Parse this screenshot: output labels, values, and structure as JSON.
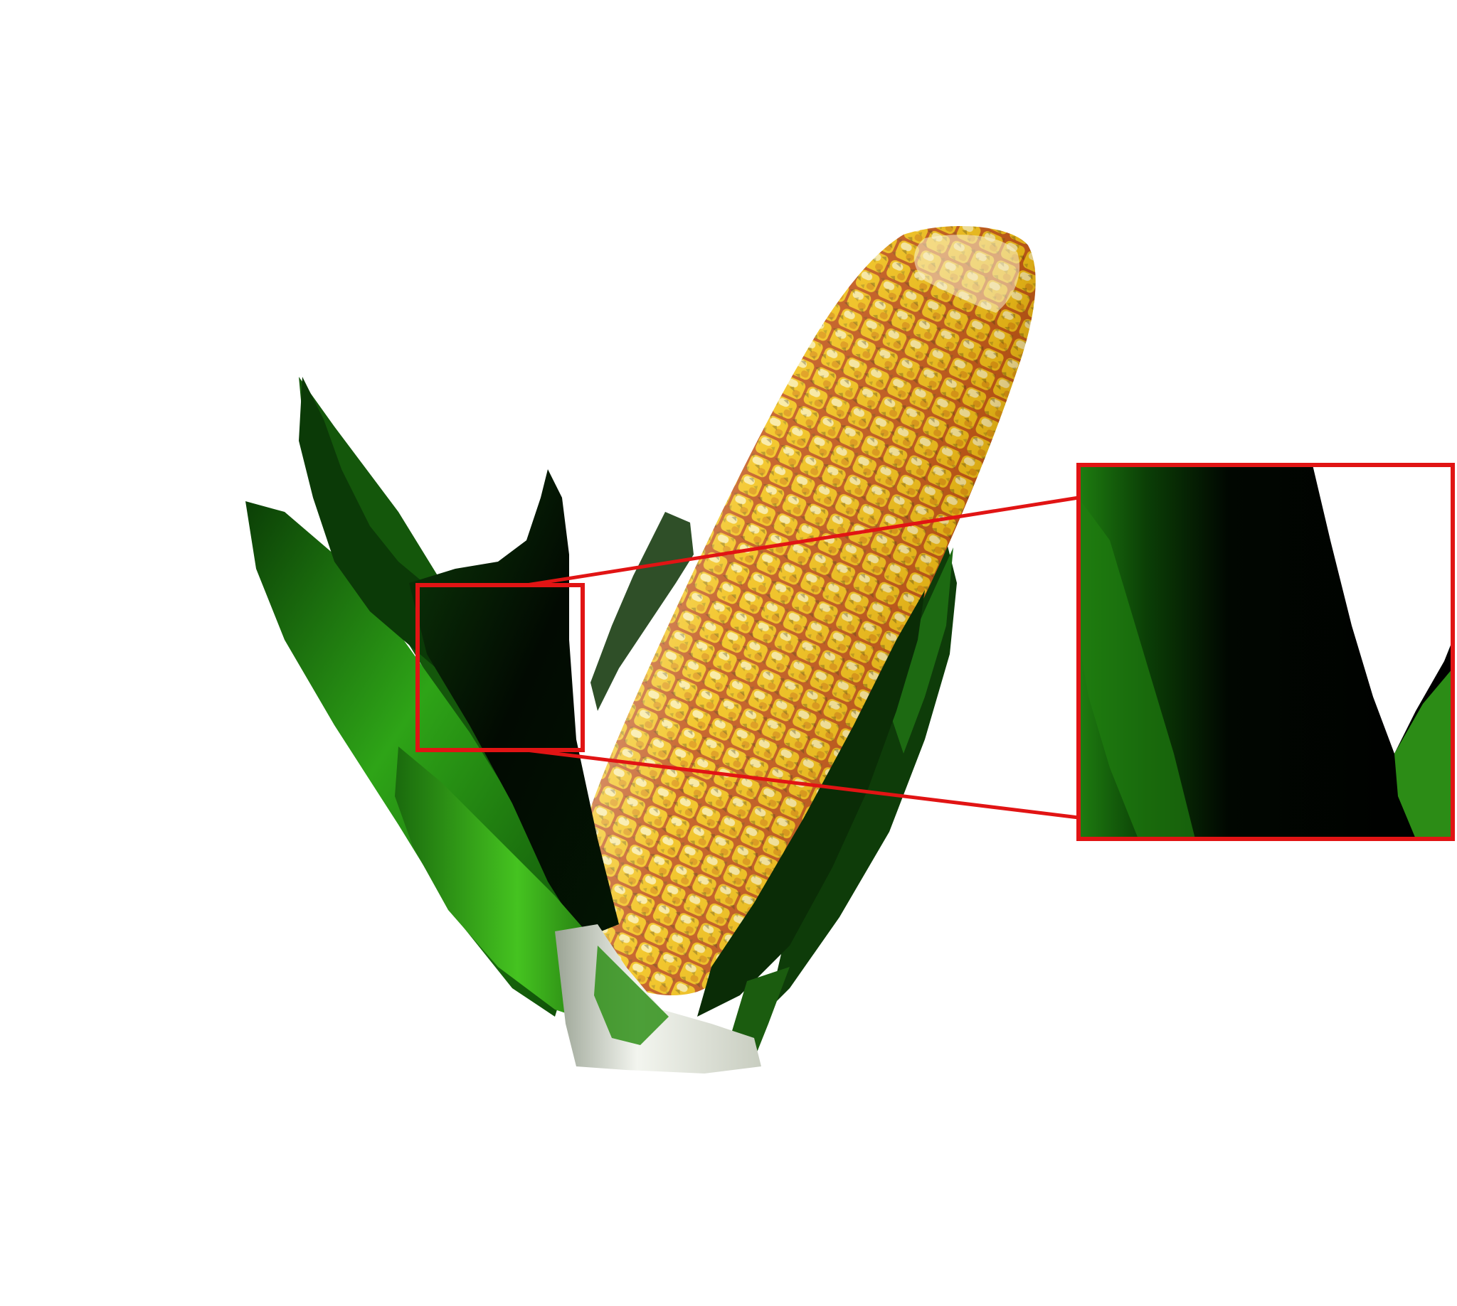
{
  "image": {
    "background_color": "#ffffff",
    "subject": "corn-cob",
    "colors": {
      "kernel_light": "#f7efb0",
      "kernel_yellow": "#f2c21a",
      "kernel_orange": "#d88a12",
      "kernel_groove": "#c2581a",
      "husk_bright_green": "#39b81c",
      "husk_green": "#1f7d10",
      "husk_dark": "#041304",
      "stalk_white": "#e9ece4",
      "zoom_frame": "#e11414"
    }
  },
  "zoom_inset": {
    "frame_color": "#e11414",
    "magnified_region": "husk-leaf-detail"
  }
}
